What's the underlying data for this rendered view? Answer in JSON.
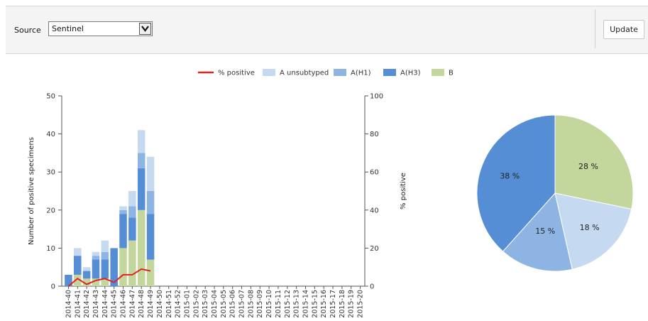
{
  "toolbar": {
    "source_label": "Source",
    "source_value": "Sentinel",
    "update_label": "Update"
  },
  "colors": {
    "toolbar_bg": "#f4f4f4",
    "line": "#e0241b",
    "a_unsubtyped": "#c5d9f1",
    "a_h1": "#8eb4e3",
    "a_h3": "#558ed5",
    "b": "#c3d69b"
  },
  "chart_data": [
    {
      "type": "bar",
      "stacked": true,
      "categories": [
        "2014-40",
        "2014-41",
        "2014-42",
        "2014-43",
        "2014-44",
        "2014-45",
        "2014-46",
        "2014-47",
        "2014-48",
        "2014-49",
        "2014-50",
        "2014-51",
        "2014-52",
        "2015-01",
        "2015-02",
        "2015-03",
        "2015-04",
        "2015-05",
        "2015-06",
        "2015-07",
        "2015-08",
        "2015-09",
        "2015-10",
        "2015-11",
        "2015-12",
        "2015-13",
        "2015-14",
        "2015-15",
        "2015-16",
        "2015-17",
        "2015-18",
        "2015-19",
        "2015-20"
      ],
      "series": [
        {
          "name": "B",
          "color": "#c3d69b",
          "values": [
            0,
            3,
            2,
            2,
            2,
            0,
            10,
            12,
            20,
            7,
            0,
            0,
            0,
            0,
            0,
            0,
            0,
            0,
            0,
            0,
            0,
            0,
            0,
            0,
            0,
            0,
            0,
            0,
            0,
            0,
            0,
            0,
            0
          ]
        },
        {
          "name": "A(H3)",
          "color": "#558ed5",
          "values": [
            3,
            5,
            2,
            5,
            5,
            10,
            9,
            6,
            11,
            12,
            0,
            0,
            0,
            0,
            0,
            0,
            0,
            0,
            0,
            0,
            0,
            0,
            0,
            0,
            0,
            0,
            0,
            0,
            0,
            0,
            0,
            0,
            0
          ]
        },
        {
          "name": "A(H1)",
          "color": "#8eb4e3",
          "values": [
            0,
            0,
            0,
            1,
            2,
            0,
            1,
            3,
            4,
            6,
            0,
            0,
            0,
            0,
            0,
            0,
            0,
            0,
            0,
            0,
            0,
            0,
            0,
            0,
            0,
            0,
            0,
            0,
            0,
            0,
            0,
            0,
            0
          ]
        },
        {
          "name": "A unsubtyped",
          "color": "#c5d9f1",
          "values": [
            0,
            2,
            1,
            1,
            3,
            0,
            1,
            4,
            6,
            9,
            0,
            0,
            0,
            0,
            0,
            0,
            0,
            0,
            0,
            0,
            0,
            0,
            0,
            0,
            0,
            0,
            0,
            0,
            0,
            0,
            0,
            0,
            0
          ]
        }
      ],
      "line_series": {
        "name": "% positive",
        "color": "#e0241b",
        "values": [
          0,
          4,
          1,
          3,
          4,
          2,
          6,
          6,
          9,
          8
        ]
      },
      "legend": [
        "% positive",
        "A unsubtyped",
        "A(H1)",
        "A(H3)",
        "B"
      ],
      "ylabel": "Number of positive specimens",
      "y2label": "% positive",
      "ylim": [
        0,
        50
      ],
      "yticks": [
        0,
        10,
        20,
        30,
        40,
        50
      ],
      "y2lim": [
        0,
        100
      ],
      "y2ticks": [
        0,
        20,
        40,
        60,
        80,
        100
      ],
      "legend_position": "top"
    },
    {
      "type": "pie",
      "labels": [
        "B",
        "A unsubtyped",
        "A(H1)",
        "A(H3)"
      ],
      "values": [
        28,
        18,
        15,
        38
      ],
      "label_texts": [
        "28 %",
        "18 %",
        "15 %",
        "38 %"
      ],
      "colors": [
        "#c3d69b",
        "#c5d9f1",
        "#8eb4e3",
        "#558ed5"
      ]
    }
  ]
}
